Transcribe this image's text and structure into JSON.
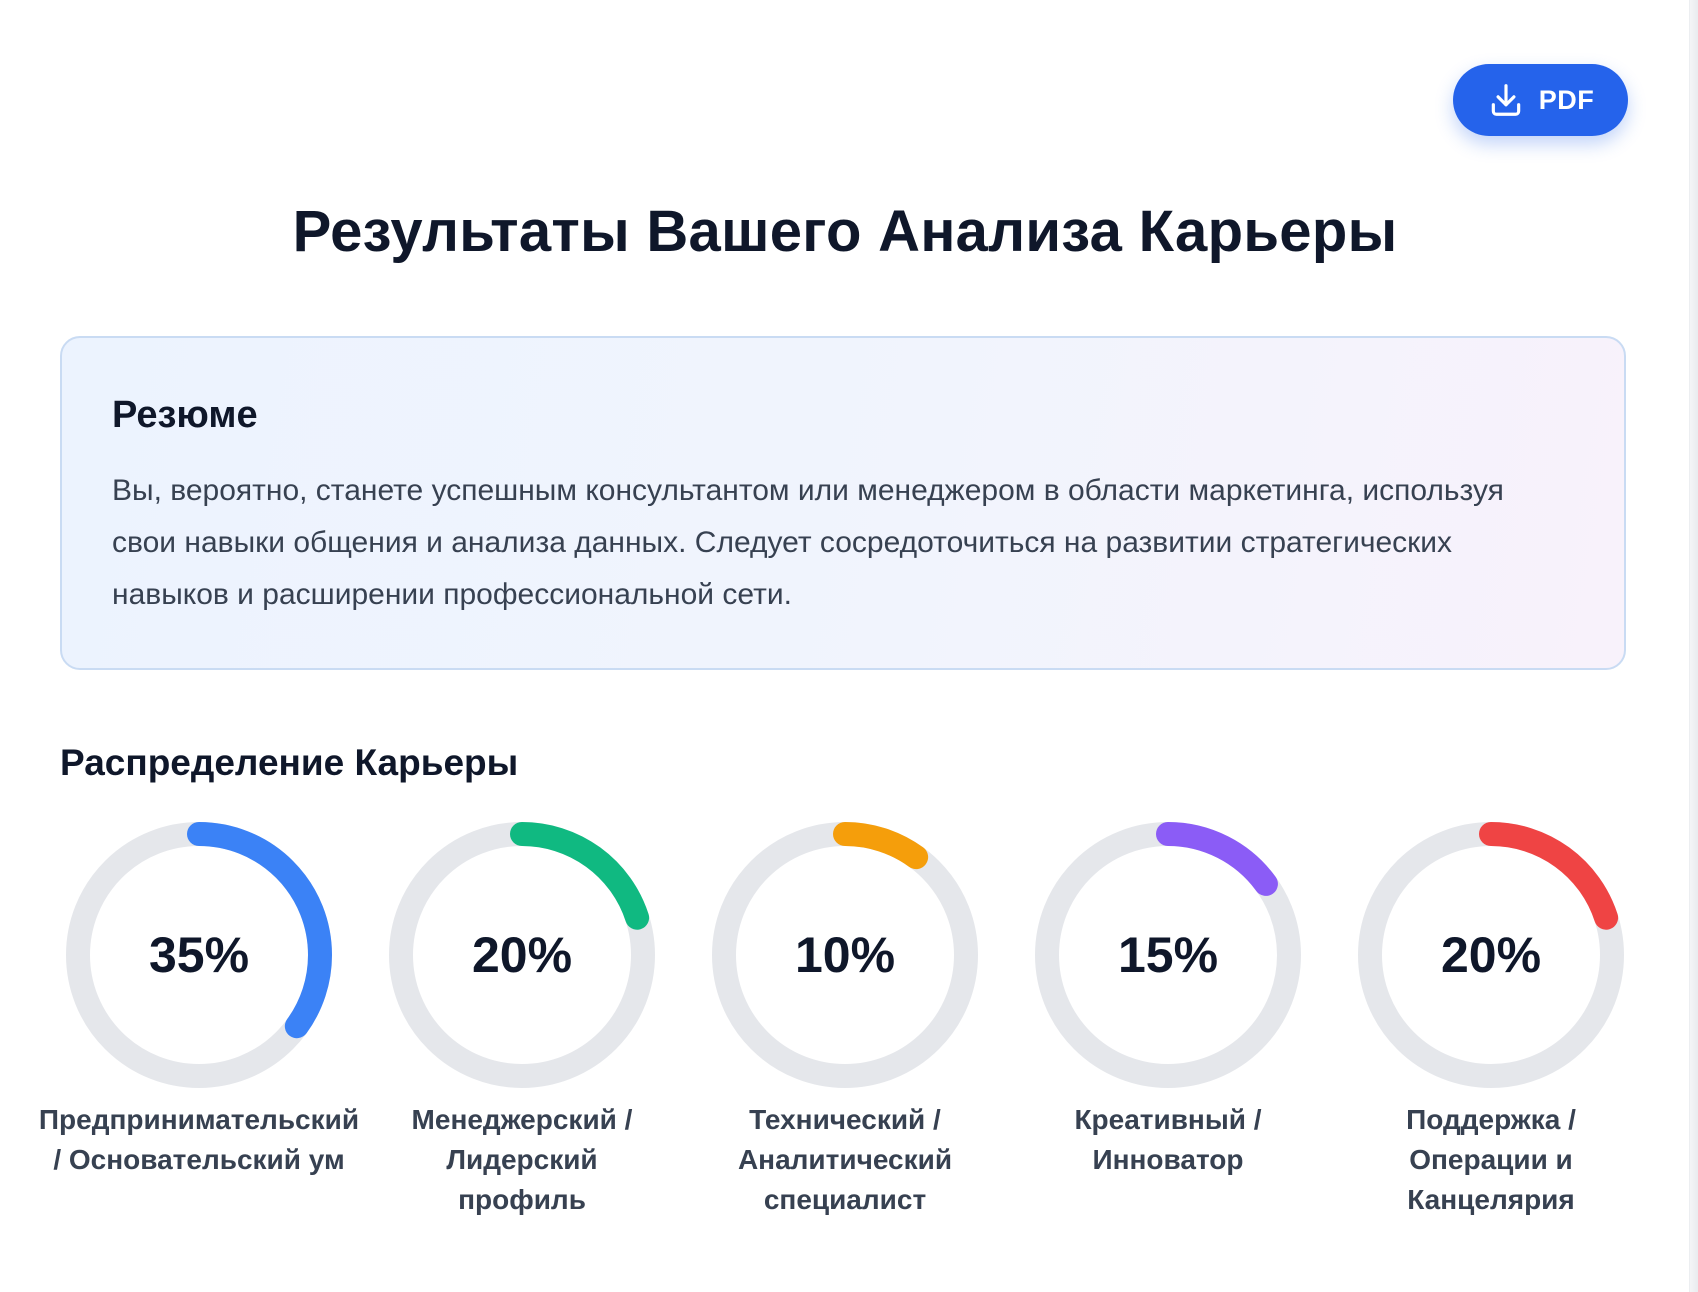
{
  "toolbar": {
    "pdf_label": "PDF",
    "pdf_icon": "download-icon"
  },
  "page": {
    "title": "Результаты Вашего Анализа Карьеры"
  },
  "summary": {
    "title": "Резюме",
    "text": "Вы, вероятно, станете успешным консультантом или менеджером в области маркетинга, используя свои навыки общения и анализа данных. Следует сосредоточиться на развитии стратегических навыков и расширении профессиональной сети."
  },
  "distribution": {
    "title": "Распределение Карьеры",
    "track_color": "#e5e7eb",
    "items": [
      {
        "percent": 35,
        "value_label": "35%",
        "label": "Предпринимательский\n/ Основательский ум",
        "color": "#3b82f6"
      },
      {
        "percent": 20,
        "value_label": "20%",
        "label": "Менеджерский /\nЛидерский\nпрофиль",
        "color": "#10b981"
      },
      {
        "percent": 10,
        "value_label": "10%",
        "label": "Технический /\nАналитический\nспециалист",
        "color": "#f59e0b"
      },
      {
        "percent": 15,
        "value_label": "15%",
        "label": "Креативный /\nИнноватор",
        "color": "#8b5cf6"
      },
      {
        "percent": 20,
        "value_label": "20%",
        "label": "Поддержка /\nОперации и\nКанцелярия",
        "color": "#ef4444"
      }
    ]
  }
}
